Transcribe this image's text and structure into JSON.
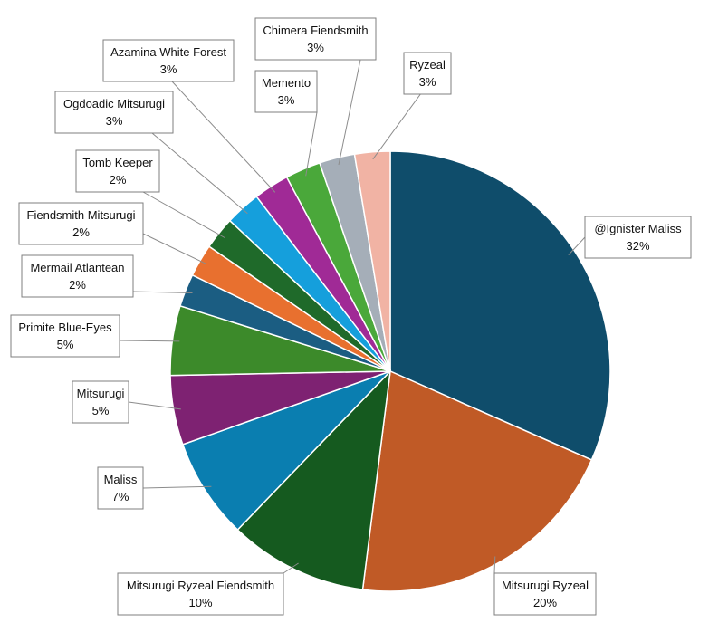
{
  "chart_data": {
    "type": "pie",
    "title": "",
    "slices": [
      {
        "label": "@Ignister Maliss",
        "percent_label": "32%",
        "value": 31.6,
        "color": "#0f4d6b"
      },
      {
        "label": "Mitsurugi Ryzeal",
        "percent_label": "20%",
        "value": 20.4,
        "color": "#c05a26"
      },
      {
        "label": "Mitsurugi Ryzeal Fiendsmith",
        "percent_label": "10%",
        "value": 10.2,
        "color": "#155a1f"
      },
      {
        "label": "Maliss",
        "percent_label": "7%",
        "value": 7.4,
        "color": "#0a7eb0"
      },
      {
        "label": "Mitsurugi",
        "percent_label": "5%",
        "value": 5.1,
        "color": "#7e2272"
      },
      {
        "label": "Primite Blue-Eyes",
        "percent_label": "5%",
        "value": 5.1,
        "color": "#3c8a2a"
      },
      {
        "label": "Mermail Atlantean",
        "percent_label": "2%",
        "value": 2.4,
        "color": "#1b5d82"
      },
      {
        "label": "Fiendsmith Mitsurugi",
        "percent_label": "2%",
        "value": 2.4,
        "color": "#e8702f"
      },
      {
        "label": "Tomb Keeper",
        "percent_label": "2%",
        "value": 2.4,
        "color": "#1f6a2a"
      },
      {
        "label": "Ogdoadic Mitsurugi",
        "percent_label": "3%",
        "value": 2.6,
        "color": "#159fdc"
      },
      {
        "label": "Azamina White Forest",
        "percent_label": "3%",
        "value": 2.6,
        "color": "#a02a96"
      },
      {
        "label": "Memento",
        "percent_label": "3%",
        "value": 2.6,
        "color": "#4aa83a"
      },
      {
        "label": "Chimera Fiendsmith",
        "percent_label": "3%",
        "value": 2.6,
        "color": "#a5aeb8"
      },
      {
        "label": "Ryzeal",
        "percent_label": "3%",
        "value": 2.6,
        "color": "#f1b3a4"
      }
    ],
    "legend": "none",
    "data_labels": "callouts"
  }
}
